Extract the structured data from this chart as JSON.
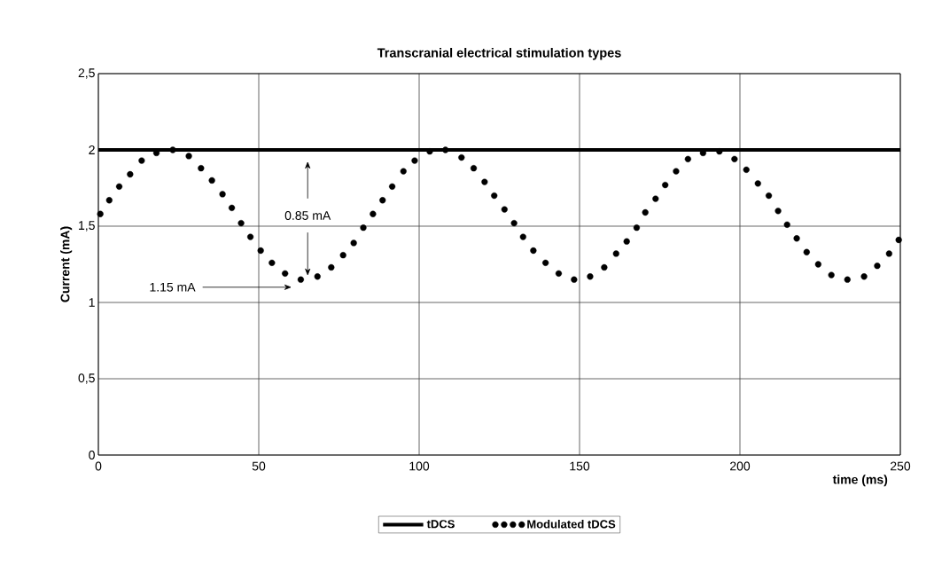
{
  "chart_data": {
    "type": "scatter",
    "title": "Transcranial electrical stimulation types",
    "xlabel": "time (ms)",
    "ylabel": "Current (mA)",
    "xlim": [
      0,
      250
    ],
    "xticks": [
      0,
      50,
      100,
      150,
      200,
      250
    ],
    "ylim": [
      0,
      2.5
    ],
    "yticks": [
      0,
      {
        "value": 0.5,
        "label": "0,5"
      },
      1,
      {
        "value": 1.5,
        "label": "1,5"
      },
      2,
      {
        "value": 2.5,
        "label": "2,5"
      }
    ],
    "grid": true,
    "legend": "bottom",
    "series": [
      {
        "name": "tDCS",
        "type": "line",
        "color": "#000000",
        "line_style": "solid",
        "marker": "none",
        "x": [
          0,
          250
        ],
        "values": [
          2,
          2
        ]
      },
      {
        "name": "Modulated tDCS",
        "color": "#000000",
        "marker": "circle",
        "x": [
          0.6,
          3.4,
          6.5,
          9.9,
          13.5,
          18.1,
          23.2,
          28.2,
          32.0,
          35.4,
          38.7,
          41.6,
          44.5,
          47.4,
          50.6,
          54.1,
          58.2,
          63.1,
          68.3,
          72.6,
          76.3,
          79.6,
          82.6,
          85.6,
          88.6,
          91.6,
          95.1,
          98.6,
          103.3,
          108.2,
          113.2,
          117.0,
          120.4,
          123.4,
          126.6,
          129.6,
          132.4,
          135.6,
          139.4,
          143.5,
          148.3,
          153.3,
          157.7,
          161.4,
          164.7,
          167.8,
          170.5,
          173.7,
          176.7,
          180.1,
          183.8,
          188.5,
          193.6,
          198.3,
          202.0,
          205.6,
          209.0,
          211.9,
          214.7,
          217.7,
          220.8,
          224.4,
          228.5,
          233.5,
          238.7,
          242.8,
          246.5,
          249.5
        ],
        "values": [
          1.58,
          1.67,
          1.76,
          1.84,
          1.93,
          1.98,
          2.0,
          1.96,
          1.88,
          1.8,
          1.71,
          1.62,
          1.52,
          1.43,
          1.34,
          1.26,
          1.19,
          1.15,
          1.17,
          1.23,
          1.31,
          1.39,
          1.49,
          1.58,
          1.67,
          1.76,
          1.86,
          1.93,
          1.99,
          2.0,
          1.95,
          1.88,
          1.79,
          1.7,
          1.61,
          1.52,
          1.43,
          1.34,
          1.26,
          1.19,
          1.15,
          1.17,
          1.23,
          1.32,
          1.4,
          1.49,
          1.59,
          1.68,
          1.77,
          1.86,
          1.94,
          1.98,
          1.99,
          1.94,
          1.87,
          1.78,
          1.7,
          1.6,
          1.51,
          1.42,
          1.33,
          1.25,
          1.18,
          1.15,
          1.17,
          1.24,
          1.32,
          1.41
        ]
      }
    ],
    "annotations": [
      "0.85 mA",
      "1.15 mA"
    ]
  }
}
